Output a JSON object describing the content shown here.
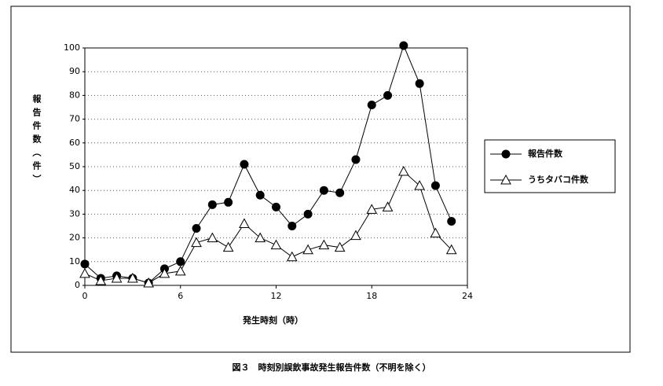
{
  "chart_data": {
    "type": "line",
    "title": "図３　時刻別誤飲事故発生報告件数（不明を除く）",
    "x_label": "発生時刻（時）",
    "y_label": "報告件数（件）",
    "x": [
      0,
      1,
      2,
      3,
      4,
      5,
      6,
      7,
      8,
      9,
      10,
      11,
      12,
      13,
      14,
      15,
      16,
      17,
      18,
      19,
      20,
      21,
      22,
      23
    ],
    "series": [
      {
        "name": "報告件数",
        "color": "#000000",
        "marker": "circle",
        "values": [
          9,
          3,
          4,
          3,
          1,
          7,
          10,
          24,
          34,
          35,
          51,
          38,
          33,
          25,
          30,
          40,
          39,
          53,
          76,
          80,
          101,
          85,
          42,
          27
        ]
      },
      {
        "name": "うちタバコ件数",
        "color": "#000000",
        "marker": "triangle",
        "values": [
          5,
          2,
          3,
          3,
          1,
          5,
          6,
          18,
          20,
          16,
          26,
          20,
          17,
          12,
          15,
          17,
          16,
          21,
          32,
          33,
          48,
          42,
          22,
          15
        ]
      }
    ],
    "xlim": [
      0,
      24
    ],
    "xticks": [
      0,
      6,
      12,
      18,
      24
    ],
    "ylim": [
      0,
      100
    ],
    "yticks": [
      0,
      10,
      20,
      30,
      40,
      50,
      60,
      70,
      80,
      90,
      100
    ],
    "grid": true,
    "legend": "right"
  }
}
